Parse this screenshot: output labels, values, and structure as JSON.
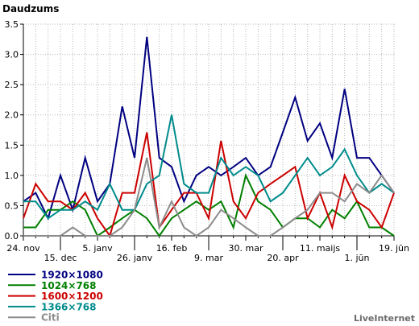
{
  "chart_data": {
    "type": "line",
    "title": "Daudzums",
    "xlabel": "",
    "ylabel": "",
    "credit": "LiveInternet",
    "ylim": [
      0,
      3.5
    ],
    "yticks": [
      "0.0",
      "0.5",
      "1.0",
      "1.5",
      "2.0",
      "2.5",
      "3.0",
      "3.5"
    ],
    "xticks": [
      {
        "label": "24. nov",
        "week": 0,
        "row": 1
      },
      {
        "label": "15. dec",
        "week": 3,
        "row": 2
      },
      {
        "label": "5. janv",
        "week": 6,
        "row": 1
      },
      {
        "label": "26. janv",
        "week": 9,
        "row": 2
      },
      {
        "label": "16. feb",
        "week": 12,
        "row": 1
      },
      {
        "label": "9. mar",
        "week": 15,
        "row": 2
      },
      {
        "label": "30. mar",
        "week": 18,
        "row": 1
      },
      {
        "label": "20. apr",
        "week": 21,
        "row": 2
      },
      {
        "label": "11. maijs",
        "week": 24,
        "row": 1
      },
      {
        "label": "1. jūn",
        "week": 27,
        "row": 2
      },
      {
        "label": "19. jūn",
        "week": 30,
        "row": 1
      }
    ],
    "grid": true,
    "legend_position": "bottom-left",
    "series": [
      {
        "name": "1920×1080",
        "color": "#000080",
        "values": [
          0.57,
          0.71,
          0.29,
          1.0,
          0.43,
          1.29,
          0.57,
          0.86,
          2.14,
          1.29,
          3.29,
          1.29,
          1.14,
          0.57,
          1.0,
          1.14,
          1.0,
          1.14,
          1.29,
          1.0,
          1.14,
          1.71,
          2.29,
          1.57,
          1.86,
          1.29,
          2.43,
          1.29,
          1.29,
          1.0,
          0.71
        ]
      },
      {
        "name": "1024×768",
        "color": "#008000",
        "values": [
          0.14,
          0.14,
          0.43,
          0.43,
          0.57,
          0.43,
          0.0,
          0.14,
          0.29,
          0.43,
          0.29,
          0.0,
          0.29,
          0.43,
          0.57,
          0.43,
          0.57,
          0.14,
          1.0,
          0.57,
          0.43,
          0.14,
          0.29,
          0.29,
          0.14,
          0.43,
          0.29,
          0.57,
          0.14,
          0.14,
          0.0
        ]
      },
      {
        "name": "1600×1200",
        "color": "#cc0000",
        "values": [
          0.29,
          0.86,
          0.57,
          0.57,
          0.43,
          0.71,
          0.29,
          0.0,
          0.71,
          0.71,
          1.71,
          0.14,
          0.43,
          0.71,
          0.71,
          0.29,
          1.57,
          0.57,
          0.29,
          0.71,
          0.86,
          1.0,
          1.14,
          0.29,
          0.71,
          0.14,
          1.0,
          0.57,
          0.43,
          0.14,
          0.71
        ]
      },
      {
        "name": "1366×768",
        "color": "#008b8b",
        "values": [
          0.57,
          0.57,
          0.29,
          0.43,
          0.43,
          0.57,
          0.43,
          0.86,
          0.43,
          0.43,
          0.86,
          1.0,
          2.0,
          0.86,
          0.71,
          0.71,
          1.29,
          1.0,
          1.14,
          1.0,
          0.57,
          0.71,
          1.0,
          1.29,
          1.0,
          1.14,
          1.43,
          1.0,
          0.71,
          0.86,
          0.71
        ]
      },
      {
        "name": "Citi",
        "color": "#8c8c8c",
        "values": [
          0.0,
          0.0,
          0.0,
          0.0,
          0.14,
          0.0,
          0.0,
          0.0,
          0.14,
          0.43,
          1.29,
          0.14,
          0.57,
          0.14,
          0.0,
          0.14,
          0.43,
          0.29,
          0.14,
          0.0,
          0.0,
          0.14,
          0.29,
          0.43,
          0.71,
          0.71,
          0.57,
          0.86,
          0.71,
          1.0,
          0.71
        ]
      }
    ]
  }
}
